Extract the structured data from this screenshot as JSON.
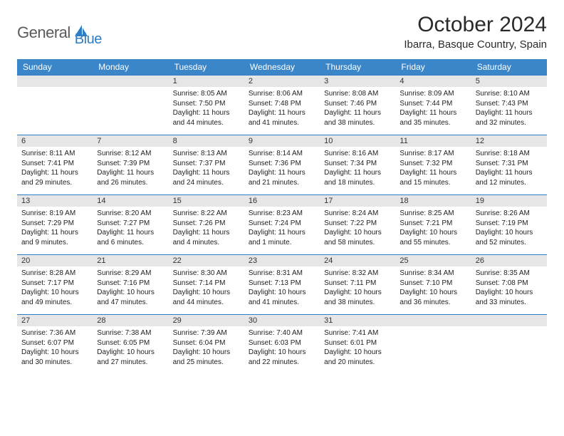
{
  "brand": {
    "text1": "General",
    "text2": "Blue"
  },
  "title": "October 2024",
  "location": "Ibarra, Basque Country, Spain",
  "colors": {
    "headerBg": "#3b86c8",
    "headerText": "#ffffff",
    "dayNumBg": "#e6e6e6",
    "cellBorder": "#2d7dc6",
    "logoGray": "#5a5a5a",
    "logoBlue": "#2d7dc6"
  },
  "weekdays": [
    "Sunday",
    "Monday",
    "Tuesday",
    "Wednesday",
    "Thursday",
    "Friday",
    "Saturday"
  ],
  "cells": [
    {
      "day": "",
      "sunrise": "",
      "sunset": "",
      "daylight": ""
    },
    {
      "day": "",
      "sunrise": "",
      "sunset": "",
      "daylight": ""
    },
    {
      "day": "1",
      "sunrise": "Sunrise: 8:05 AM",
      "sunset": "Sunset: 7:50 PM",
      "daylight": "Daylight: 11 hours and 44 minutes."
    },
    {
      "day": "2",
      "sunrise": "Sunrise: 8:06 AM",
      "sunset": "Sunset: 7:48 PM",
      "daylight": "Daylight: 11 hours and 41 minutes."
    },
    {
      "day": "3",
      "sunrise": "Sunrise: 8:08 AM",
      "sunset": "Sunset: 7:46 PM",
      "daylight": "Daylight: 11 hours and 38 minutes."
    },
    {
      "day": "4",
      "sunrise": "Sunrise: 8:09 AM",
      "sunset": "Sunset: 7:44 PM",
      "daylight": "Daylight: 11 hours and 35 minutes."
    },
    {
      "day": "5",
      "sunrise": "Sunrise: 8:10 AM",
      "sunset": "Sunset: 7:43 PM",
      "daylight": "Daylight: 11 hours and 32 minutes."
    },
    {
      "day": "6",
      "sunrise": "Sunrise: 8:11 AM",
      "sunset": "Sunset: 7:41 PM",
      "daylight": "Daylight: 11 hours and 29 minutes."
    },
    {
      "day": "7",
      "sunrise": "Sunrise: 8:12 AM",
      "sunset": "Sunset: 7:39 PM",
      "daylight": "Daylight: 11 hours and 26 minutes."
    },
    {
      "day": "8",
      "sunrise": "Sunrise: 8:13 AM",
      "sunset": "Sunset: 7:37 PM",
      "daylight": "Daylight: 11 hours and 24 minutes."
    },
    {
      "day": "9",
      "sunrise": "Sunrise: 8:14 AM",
      "sunset": "Sunset: 7:36 PM",
      "daylight": "Daylight: 11 hours and 21 minutes."
    },
    {
      "day": "10",
      "sunrise": "Sunrise: 8:16 AM",
      "sunset": "Sunset: 7:34 PM",
      "daylight": "Daylight: 11 hours and 18 minutes."
    },
    {
      "day": "11",
      "sunrise": "Sunrise: 8:17 AM",
      "sunset": "Sunset: 7:32 PM",
      "daylight": "Daylight: 11 hours and 15 minutes."
    },
    {
      "day": "12",
      "sunrise": "Sunrise: 8:18 AM",
      "sunset": "Sunset: 7:31 PM",
      "daylight": "Daylight: 11 hours and 12 minutes."
    },
    {
      "day": "13",
      "sunrise": "Sunrise: 8:19 AM",
      "sunset": "Sunset: 7:29 PM",
      "daylight": "Daylight: 11 hours and 9 minutes."
    },
    {
      "day": "14",
      "sunrise": "Sunrise: 8:20 AM",
      "sunset": "Sunset: 7:27 PM",
      "daylight": "Daylight: 11 hours and 6 minutes."
    },
    {
      "day": "15",
      "sunrise": "Sunrise: 8:22 AM",
      "sunset": "Sunset: 7:26 PM",
      "daylight": "Daylight: 11 hours and 4 minutes."
    },
    {
      "day": "16",
      "sunrise": "Sunrise: 8:23 AM",
      "sunset": "Sunset: 7:24 PM",
      "daylight": "Daylight: 11 hours and 1 minute."
    },
    {
      "day": "17",
      "sunrise": "Sunrise: 8:24 AM",
      "sunset": "Sunset: 7:22 PM",
      "daylight": "Daylight: 10 hours and 58 minutes."
    },
    {
      "day": "18",
      "sunrise": "Sunrise: 8:25 AM",
      "sunset": "Sunset: 7:21 PM",
      "daylight": "Daylight: 10 hours and 55 minutes."
    },
    {
      "day": "19",
      "sunrise": "Sunrise: 8:26 AM",
      "sunset": "Sunset: 7:19 PM",
      "daylight": "Daylight: 10 hours and 52 minutes."
    },
    {
      "day": "20",
      "sunrise": "Sunrise: 8:28 AM",
      "sunset": "Sunset: 7:17 PM",
      "daylight": "Daylight: 10 hours and 49 minutes."
    },
    {
      "day": "21",
      "sunrise": "Sunrise: 8:29 AM",
      "sunset": "Sunset: 7:16 PM",
      "daylight": "Daylight: 10 hours and 47 minutes."
    },
    {
      "day": "22",
      "sunrise": "Sunrise: 8:30 AM",
      "sunset": "Sunset: 7:14 PM",
      "daylight": "Daylight: 10 hours and 44 minutes."
    },
    {
      "day": "23",
      "sunrise": "Sunrise: 8:31 AM",
      "sunset": "Sunset: 7:13 PM",
      "daylight": "Daylight: 10 hours and 41 minutes."
    },
    {
      "day": "24",
      "sunrise": "Sunrise: 8:32 AM",
      "sunset": "Sunset: 7:11 PM",
      "daylight": "Daylight: 10 hours and 38 minutes."
    },
    {
      "day": "25",
      "sunrise": "Sunrise: 8:34 AM",
      "sunset": "Sunset: 7:10 PM",
      "daylight": "Daylight: 10 hours and 36 minutes."
    },
    {
      "day": "26",
      "sunrise": "Sunrise: 8:35 AM",
      "sunset": "Sunset: 7:08 PM",
      "daylight": "Daylight: 10 hours and 33 minutes."
    },
    {
      "day": "27",
      "sunrise": "Sunrise: 7:36 AM",
      "sunset": "Sunset: 6:07 PM",
      "daylight": "Daylight: 10 hours and 30 minutes."
    },
    {
      "day": "28",
      "sunrise": "Sunrise: 7:38 AM",
      "sunset": "Sunset: 6:05 PM",
      "daylight": "Daylight: 10 hours and 27 minutes."
    },
    {
      "day": "29",
      "sunrise": "Sunrise: 7:39 AM",
      "sunset": "Sunset: 6:04 PM",
      "daylight": "Daylight: 10 hours and 25 minutes."
    },
    {
      "day": "30",
      "sunrise": "Sunrise: 7:40 AM",
      "sunset": "Sunset: 6:03 PM",
      "daylight": "Daylight: 10 hours and 22 minutes."
    },
    {
      "day": "31",
      "sunrise": "Sunrise: 7:41 AM",
      "sunset": "Sunset: 6:01 PM",
      "daylight": "Daylight: 10 hours and 20 minutes."
    },
    {
      "day": "",
      "sunrise": "",
      "sunset": "",
      "daylight": ""
    },
    {
      "day": "",
      "sunrise": "",
      "sunset": "",
      "daylight": ""
    }
  ]
}
